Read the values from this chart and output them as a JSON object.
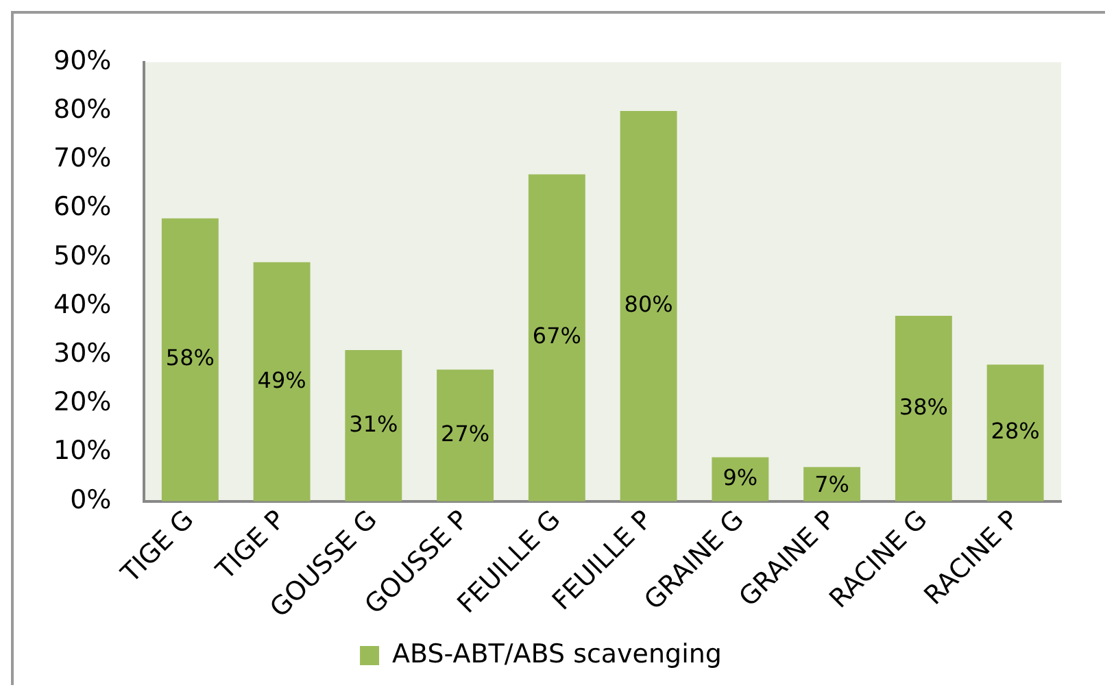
{
  "chart_data": {
    "type": "bar",
    "categories": [
      "TIGE G",
      "TIGE P",
      "GOUSSE G",
      "GOUSSE P",
      "FEUILLE G",
      "FEUILLE P",
      "GRAINE G",
      "GRAINE P",
      "RACINE G",
      "RACINE P"
    ],
    "series": [
      {
        "name": "ABS-ABT/ABS scavenging",
        "color": "#9bbb59",
        "values": [
          58,
          49,
          31,
          27,
          67,
          80,
          9,
          7,
          38,
          28
        ],
        "value_labels": [
          "58%",
          "49%",
          "31%",
          "27%",
          "67%",
          "80%",
          "9%",
          "7%",
          "38%",
          "28%"
        ]
      }
    ],
    "ylim": [
      0,
      90
    ],
    "yticks": [
      {
        "value": 0,
        "label": "0%"
      },
      {
        "value": 10,
        "label": "10%"
      },
      {
        "value": 20,
        "label": "20%"
      },
      {
        "value": 30,
        "label": "30%"
      },
      {
        "value": 40,
        "label": "40%"
      },
      {
        "value": 50,
        "label": "50%"
      },
      {
        "value": 60,
        "label": "60%"
      },
      {
        "value": 70,
        "label": "70%"
      },
      {
        "value": 80,
        "label": "80%"
      },
      {
        "value": 90,
        "label": "90%"
      }
    ],
    "grid": false,
    "legend": "bottom"
  }
}
